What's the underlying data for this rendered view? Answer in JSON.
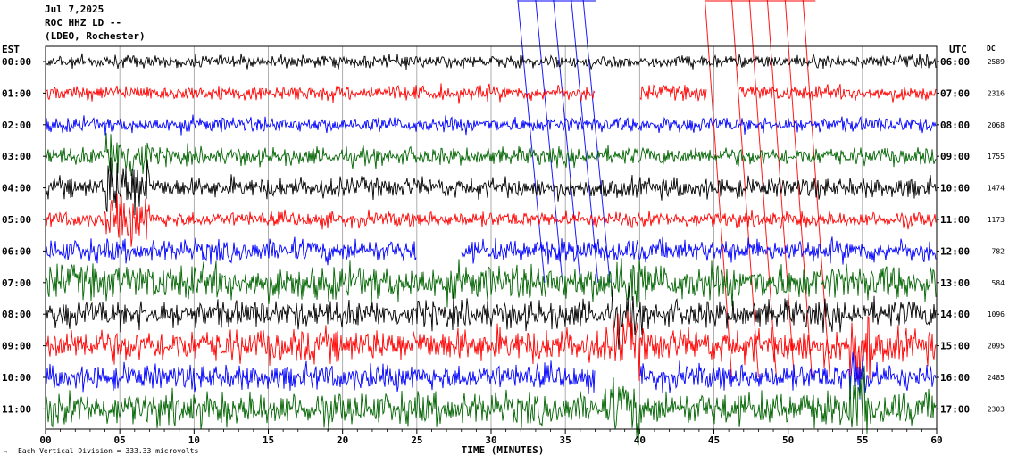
{
  "header": {
    "date": "Jul 7,2025",
    "station": "ROC HHZ LD --",
    "network": "(LDEO, Rochester)"
  },
  "chart_data": {
    "type": "line",
    "title": "Jul 7,2025",
    "left_axis_label": "EST",
    "right_axis_label": "UTC",
    "dc_label": "DC",
    "xlabel": "TIME (MINUTES)",
    "xlim": [
      0,
      60
    ],
    "x_ticks": [
      "00",
      "05",
      "10",
      "15",
      "20",
      "25",
      "30",
      "35",
      "40",
      "45",
      "50",
      "55",
      "60"
    ],
    "rows_est": [
      "00:00",
      "01:00",
      "02:00",
      "03:00",
      "04:00",
      "05:00",
      "06:00",
      "07:00",
      "08:00",
      "09:00",
      "10:00",
      "11:00"
    ],
    "rows_utc": [
      "06:00",
      "07:00",
      "08:00",
      "09:00",
      "10:00",
      "11:00",
      "12:00",
      "13:00",
      "14:00",
      "15:00",
      "16:00",
      "17:00"
    ],
    "dc_offsets": [
      2589,
      2316,
      2068,
      1755,
      1474,
      1173,
      782,
      584,
      1096,
      2095,
      2485,
      2303
    ],
    "trace_colors": [
      "#000000",
      "#ff0000",
      "#0000ff",
      "#006400"
    ],
    "footnote": "Each Vertical Division =  333.33 microvolts",
    "gaps": [
      {
        "row": 1,
        "from_min": 37.0,
        "to_min": 40.0
      },
      {
        "row": 1,
        "from_min": 44.5,
        "to_min": 46.7
      },
      {
        "row": 6,
        "from_min": 25.0,
        "to_min": 28.0
      },
      {
        "row": 10,
        "from_min": 37.0,
        "to_min": 40.0
      }
    ],
    "event_markers": [
      {
        "color": "#0000ff",
        "minutes": [
          31.8,
          33.0,
          34.2,
          35.4,
          36.2
        ]
      },
      {
        "color": "#ff0000",
        "minutes": [
          44.4,
          46.2,
          47.4,
          48.6,
          49.8,
          51.0
        ]
      }
    ]
  }
}
